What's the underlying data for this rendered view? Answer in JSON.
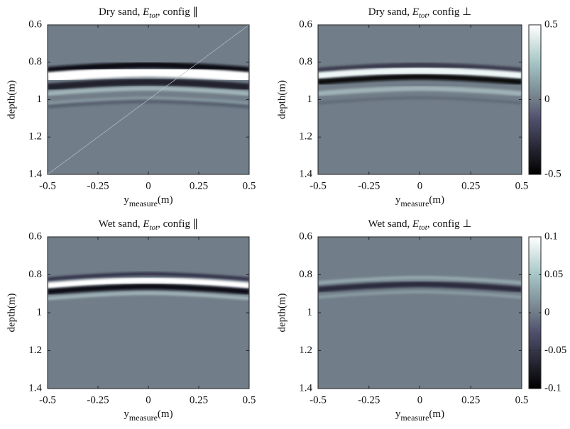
{
  "chart_data": [
    {
      "type": "heatmap",
      "title": {
        "prefix": "Dry sand, ",
        "symbol": "E",
        "subscript": "tot",
        "suffix": ", config ∥"
      },
      "xlabel": {
        "main": "y",
        "subscript": "measure",
        "unit": "(m)"
      },
      "ylabel": "depth(m)",
      "xlim": [
        -0.5,
        0.5
      ],
      "xticks": [
        -0.5,
        -0.25,
        0,
        0.25,
        0.5
      ],
      "ylim": [
        0.6,
        1.4
      ],
      "yticks": [
        0.6,
        0.8,
        1,
        1.2,
        1.4
      ],
      "y_reversed": true,
      "colormap": "bone"
    },
    {
      "type": "heatmap",
      "title": {
        "prefix": "Dry sand, ",
        "symbol": "E",
        "subscript": "tot",
        "suffix": ", config ⊥"
      },
      "xlabel": {
        "main": "y",
        "subscript": "measure",
        "unit": "(m)"
      },
      "ylabel": "depth(m)",
      "xlim": [
        -0.5,
        0.5
      ],
      "xticks": [
        -0.5,
        -0.25,
        0,
        0.25,
        0.5
      ],
      "ylim": [
        0.6,
        1.4
      ],
      "yticks": [
        0.6,
        0.8,
        1,
        1.2,
        1.4
      ],
      "y_reversed": true,
      "colormap": "bone",
      "clim": [
        -0.5,
        0.5
      ],
      "cticks": [
        -0.5,
        0,
        0.5
      ]
    },
    {
      "type": "heatmap",
      "title": {
        "prefix": "Wet sand, ",
        "symbol": "E",
        "subscript": "tot",
        "suffix": ", config ∥"
      },
      "xlabel": {
        "main": "y",
        "subscript": "measure",
        "unit": "(m)"
      },
      "ylabel": "depth(m)",
      "xlim": [
        -0.5,
        0.5
      ],
      "xticks": [
        -0.5,
        -0.25,
        0,
        0.25,
        0.5
      ],
      "ylim": [
        0.6,
        1.4
      ],
      "yticks": [
        0.6,
        0.8,
        1,
        1.2,
        1.4
      ],
      "y_reversed": true,
      "colormap": "bone"
    },
    {
      "type": "heatmap",
      "title": {
        "prefix": "Wet sand, ",
        "symbol": "E",
        "subscript": "tot",
        "suffix": ", config ⊥"
      },
      "xlabel": {
        "main": "y",
        "subscript": "measure",
        "unit": "(m)"
      },
      "ylabel": "depth(m)",
      "xlim": [
        -0.5,
        0.5
      ],
      "xticks": [
        -0.5,
        -0.25,
        0,
        0.25,
        0.5
      ],
      "ylim": [
        0.6,
        1.4
      ],
      "yticks": [
        0.6,
        0.8,
        1,
        1.2,
        1.4
      ],
      "y_reversed": true,
      "colormap": "bone",
      "clim": [
        -0.1,
        0.1
      ],
      "cticks": [
        -0.1,
        -0.05,
        0,
        0.05,
        0.1
      ]
    }
  ]
}
